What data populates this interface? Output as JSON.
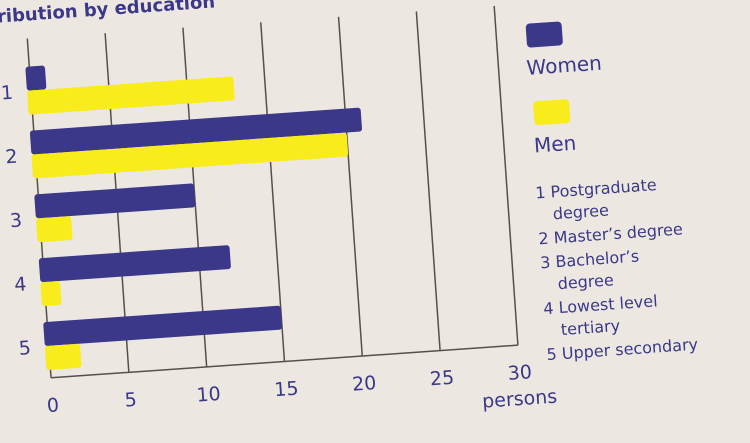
{
  "chart_data": {
    "type": "bar",
    "orientation": "horizontal",
    "title": "stribution by education",
    "categories": [
      "1",
      "2",
      "3",
      "4",
      "5"
    ],
    "series": [
      {
        "name": "Women",
        "values": [
          1,
          21,
          10,
          12,
          15
        ],
        "color": "#3b3889"
      },
      {
        "name": "Men",
        "values": [
          13,
          20,
          2,
          1,
          2
        ],
        "color": "#f8ec1c"
      }
    ],
    "x_ticks": [
      "0",
      "5",
      "10",
      "15",
      "20",
      "25",
      "30"
    ],
    "xlim": [
      0,
      30
    ],
    "xlabel": "persons",
    "grid": true,
    "legend_position": "right"
  },
  "legend": {
    "women": "Women",
    "men": "Men",
    "key": [
      {
        "line1": "1 Postgraduate",
        "line2": "degree"
      },
      {
        "line1": "2 Master’s degree",
        "line2": ""
      },
      {
        "line1": "3 Bachelor’s",
        "line2": "degree"
      },
      {
        "line1": "4 Lowest level",
        "line2": "tertiary"
      },
      {
        "line1": "5 Upper secondary",
        "line2": ""
      }
    ]
  }
}
